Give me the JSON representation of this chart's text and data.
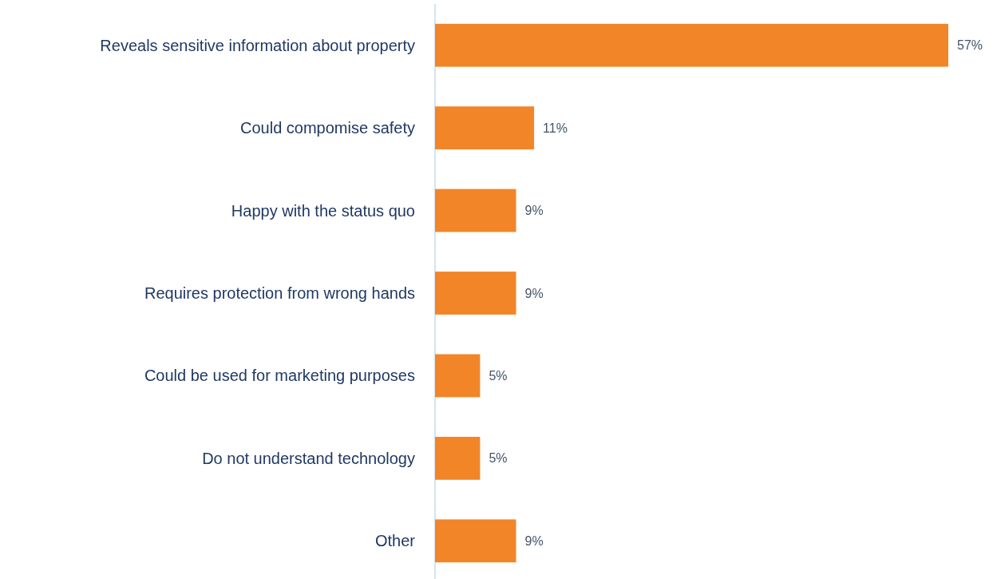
{
  "chart_data": {
    "type": "bar",
    "orientation": "horizontal",
    "categories": [
      "Reveals sensitive information about property",
      "Could compomise safety",
      "Happy with the status quo",
      "Requires protection from wrong hands",
      "Could be used for marketing purposes",
      "Do not understand technology",
      "Other"
    ],
    "values": [
      57,
      11,
      9,
      9,
      5,
      5,
      9
    ],
    "value_labels": [
      "57%",
      "11%",
      "9%",
      "9%",
      "5%",
      "5%",
      "9%"
    ],
    "color": "#f28527"
  }
}
